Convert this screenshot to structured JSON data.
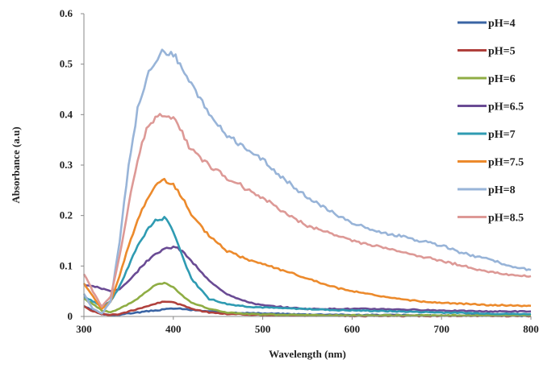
{
  "chart_data": {
    "type": "line",
    "xlabel": "Wavelength (nm)",
    "ylabel": "Absorbance (a.u)",
    "xlim": [
      300,
      800
    ],
    "ylim": [
      0,
      0.6
    ],
    "x_ticks": [
      "300",
      "400",
      "500",
      "600",
      "700",
      "800"
    ],
    "y_ticks": [
      "0",
      "0.1",
      "0.2",
      "0.3",
      "0.4",
      "0.5",
      "0.6"
    ],
    "grid": false,
    "legend_position": "right",
    "x": [
      300,
      310,
      320,
      330,
      340,
      350,
      360,
      370,
      380,
      390,
      400,
      410,
      420,
      440,
      460,
      480,
      500,
      525,
      550,
      575,
      600,
      625,
      650,
      675,
      700,
      725,
      750,
      775,
      800
    ],
    "series": [
      {
        "name": "pH=4",
        "color": "#3a64a4",
        "values": [
          0.02,
          0.012,
          0.005,
          0.002,
          0.004,
          0.006,
          0.008,
          0.01,
          0.012,
          0.014,
          0.016,
          0.015,
          0.013,
          0.01,
          0.008,
          0.007,
          0.006,
          0.005,
          0.004,
          0.004,
          0.003,
          0.003,
          0.003,
          0.002,
          0.002,
          0.002,
          0.002,
          0.002,
          0.001
        ]
      },
      {
        "name": "pH=5",
        "color": "#b0403c",
        "values": [
          0.02,
          0.01,
          0.005,
          0.003,
          0.005,
          0.01,
          0.015,
          0.02,
          0.025,
          0.03,
          0.028,
          0.022,
          0.015,
          0.008,
          0.005,
          0.004,
          0.003,
          0.002,
          0.002,
          0.002,
          0.001,
          0.001,
          0.001,
          0.001,
          0.001,
          0.001,
          0.001,
          0.001,
          0.001
        ]
      },
      {
        "name": "pH=6",
        "color": "#8fad44",
        "values": [
          0.035,
          0.025,
          0.012,
          0.008,
          0.015,
          0.025,
          0.035,
          0.05,
          0.062,
          0.067,
          0.058,
          0.042,
          0.028,
          0.015,
          0.008,
          0.005,
          0.004,
          0.003,
          0.003,
          0.002,
          0.002,
          0.002,
          0.002,
          0.002,
          0.002,
          0.002,
          0.002,
          0.002,
          0.002
        ]
      },
      {
        "name": "pH=6.5",
        "color": "#6a4b94",
        "values": [
          0.063,
          0.06,
          0.055,
          0.05,
          0.055,
          0.07,
          0.09,
          0.11,
          0.125,
          0.133,
          0.138,
          0.13,
          0.11,
          0.07,
          0.045,
          0.03,
          0.022,
          0.018,
          0.015,
          0.015,
          0.015,
          0.015,
          0.014,
          0.013,
          0.012,
          0.011,
          0.01,
          0.01,
          0.01
        ]
      },
      {
        "name": "pH=7",
        "color": "#2f9bb2",
        "values": [
          0.04,
          0.03,
          0.02,
          0.03,
          0.06,
          0.1,
          0.14,
          0.17,
          0.19,
          0.195,
          0.17,
          0.12,
          0.075,
          0.035,
          0.025,
          0.02,
          0.018,
          0.016,
          0.015,
          0.013,
          0.012,
          0.011,
          0.01,
          0.009,
          0.008,
          0.007,
          0.006,
          0.005,
          0.005
        ]
      },
      {
        "name": "pH=7.5",
        "color": "#ec8a2c",
        "values": [
          0.065,
          0.04,
          0.015,
          0.03,
          0.08,
          0.14,
          0.19,
          0.23,
          0.26,
          0.272,
          0.262,
          0.235,
          0.2,
          0.16,
          0.13,
          0.115,
          0.105,
          0.09,
          0.075,
          0.06,
          0.05,
          0.042,
          0.035,
          0.03,
          0.027,
          0.025,
          0.023,
          0.022,
          0.021
        ]
      },
      {
        "name": "pH=8",
        "color": "#98b4d8",
        "values": [
          0.045,
          0.015,
          0.005,
          0.03,
          0.15,
          0.3,
          0.41,
          0.47,
          0.51,
          0.525,
          0.522,
          0.49,
          0.46,
          0.4,
          0.36,
          0.335,
          0.31,
          0.27,
          0.235,
          0.21,
          0.185,
          0.17,
          0.16,
          0.15,
          0.14,
          0.125,
          0.115,
          0.1,
          0.092
        ]
      },
      {
        "name": "pH=8.5",
        "color": "#dd9996",
        "values": [
          0.085,
          0.05,
          0.02,
          0.04,
          0.12,
          0.22,
          0.31,
          0.37,
          0.395,
          0.4,
          0.395,
          0.365,
          0.33,
          0.3,
          0.275,
          0.255,
          0.235,
          0.205,
          0.18,
          0.165,
          0.15,
          0.14,
          0.13,
          0.12,
          0.11,
          0.1,
          0.09,
          0.082,
          0.08
        ]
      }
    ]
  }
}
